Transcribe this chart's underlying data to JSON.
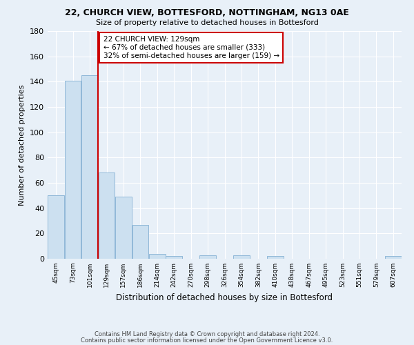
{
  "title_line1": "22, CHURCH VIEW, BOTTESFORD, NOTTINGHAM, NG13 0AE",
  "title_line2": "Size of property relative to detached houses in Bottesford",
  "xlabel": "Distribution of detached houses by size in Bottesford",
  "ylabel": "Number of detached properties",
  "bar_labels": [
    "45sqm",
    "73sqm",
    "101sqm",
    "129sqm",
    "157sqm",
    "186sqm",
    "214sqm",
    "242sqm",
    "270sqm",
    "298sqm",
    "326sqm",
    "354sqm",
    "382sqm",
    "410sqm",
    "438sqm",
    "467sqm",
    "495sqm",
    "523sqm",
    "551sqm",
    "579sqm",
    "607sqm"
  ],
  "bar_values": [
    50,
    141,
    145,
    68,
    49,
    27,
    4,
    2,
    0,
    3,
    0,
    3,
    0,
    2,
    0,
    0,
    0,
    0,
    0,
    0,
    2
  ],
  "bar_color": "#cce0f0",
  "bar_edge_color": "#90b8d8",
  "vline_color": "#cc0000",
  "annotation_text": "22 CHURCH VIEW: 129sqm\n← 67% of detached houses are smaller (333)\n32% of semi-detached houses are larger (159) →",
  "annotation_box_color": "#ffffff",
  "annotation_box_edge": "#cc0000",
  "ylim": [
    0,
    180
  ],
  "yticks": [
    0,
    20,
    40,
    60,
    80,
    100,
    120,
    140,
    160,
    180
  ],
  "footer_line1": "Contains HM Land Registry data © Crown copyright and database right 2024.",
  "footer_line2": "Contains public sector information licensed under the Open Government Licence v3.0.",
  "bg_color": "#e8f0f8",
  "plot_bg_color": "#e8f0f8",
  "grid_color": "#ffffff",
  "vline_x_index": 3
}
